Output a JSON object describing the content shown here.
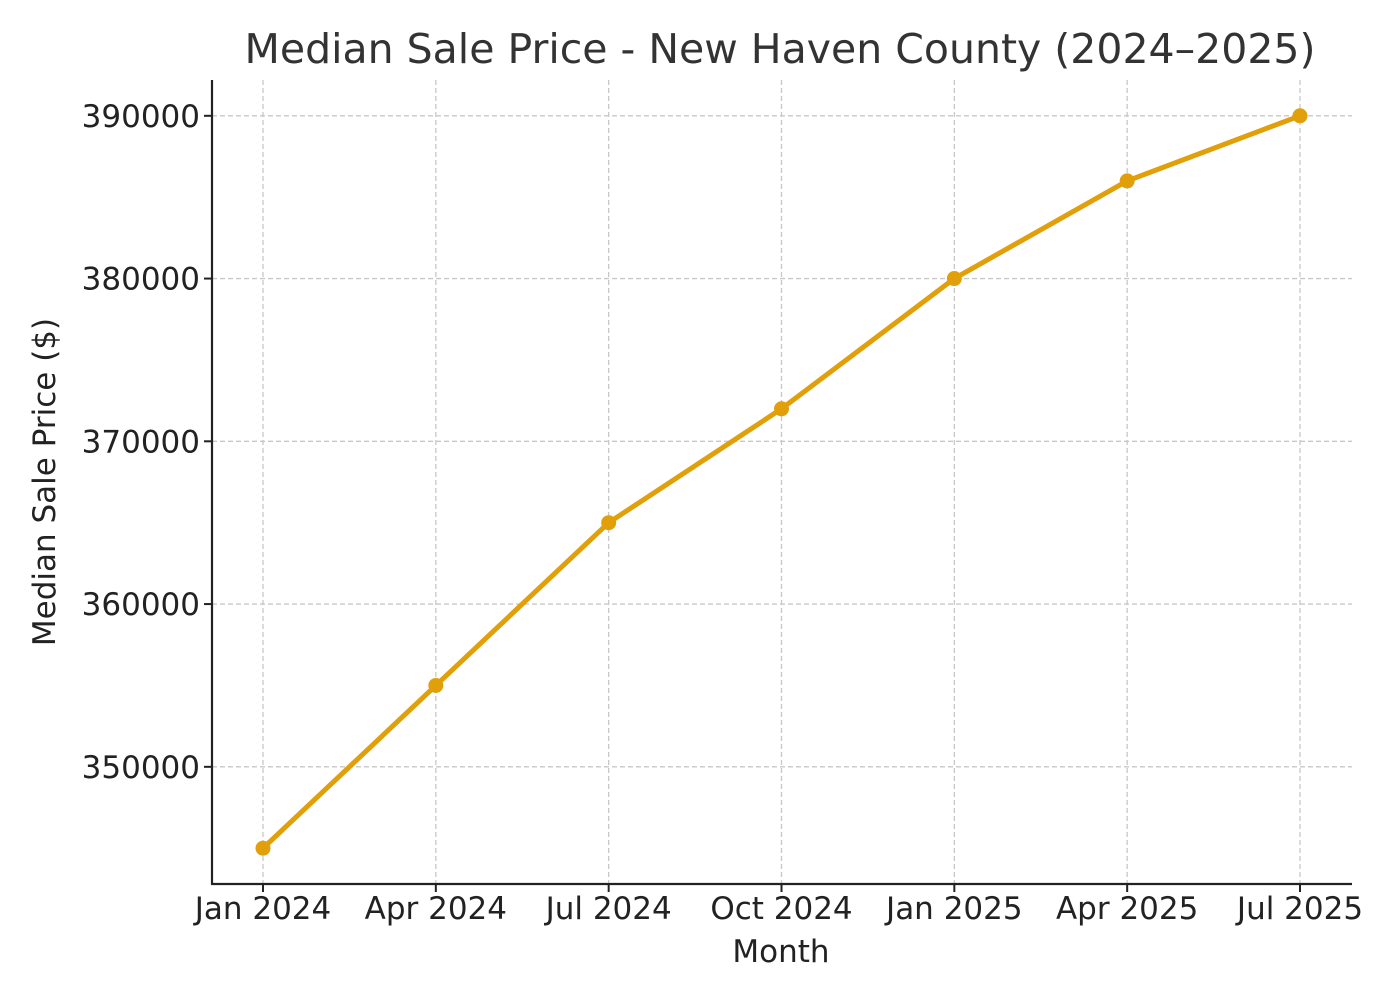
{
  "chart_data": {
    "type": "line",
    "title": "Median Sale Price - New Haven County (2024–2025)",
    "xlabel": "Month",
    "ylabel": "Median Sale Price ($)",
    "categories": [
      "Jan 2024",
      "Apr 2024",
      "Jul 2024",
      "Oct 2024",
      "Jan 2025",
      "Apr 2025",
      "Jul 2025"
    ],
    "series": [
      {
        "values": [
          345000,
          355000,
          365000,
          372000,
          380000,
          386000,
          390000
        ]
      }
    ],
    "yticks": [
      350000,
      360000,
      370000,
      380000,
      390000
    ],
    "ylim": [
      342800,
      392200
    ],
    "grid": true,
    "line_color": "#E1A00A"
  }
}
